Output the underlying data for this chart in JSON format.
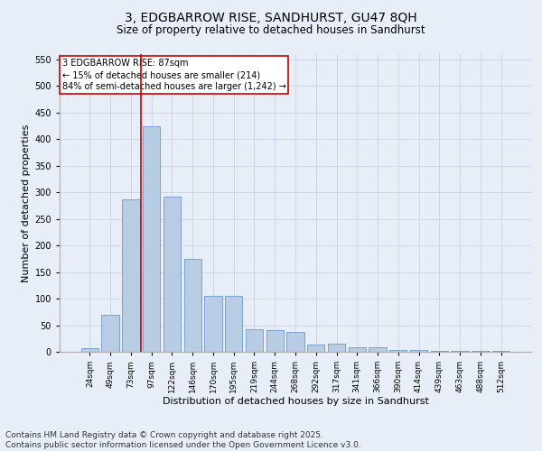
{
  "title_line1": "3, EDGBARROW RISE, SANDHURST, GU47 8QH",
  "title_line2": "Size of property relative to detached houses in Sandhurst",
  "xlabel": "Distribution of detached houses by size in Sandhurst",
  "ylabel": "Number of detached properties",
  "categories": [
    "24sqm",
    "49sqm",
    "73sqm",
    "97sqm",
    "122sqm",
    "146sqm",
    "170sqm",
    "195sqm",
    "219sqm",
    "244sqm",
    "268sqm",
    "292sqm",
    "317sqm",
    "341sqm",
    "366sqm",
    "390sqm",
    "414sqm",
    "439sqm",
    "463sqm",
    "488sqm",
    "512sqm"
  ],
  "values": [
    7,
    70,
    287,
    425,
    292,
    175,
    105,
    105,
    43,
    40,
    38,
    14,
    15,
    8,
    8,
    3,
    3,
    1,
    1,
    2,
    2
  ],
  "bar_color": "#b8cce4",
  "bar_edge_color": "#5b8bc9",
  "red_line_x": 2.5,
  "annotation_text": "3 EDGBARROW RISE: 87sqm\n← 15% of detached houses are smaller (214)\n84% of semi-detached houses are larger (1,242) →",
  "annotation_box_color": "#ffffff",
  "annotation_edge_color": "#cc0000",
  "annotation_text_size": 7,
  "red_line_color": "#cc0000",
  "grid_color": "#d0d8e8",
  "bg_color": "#e8eef8",
  "ylim": [
    0,
    560
  ],
  "yticks": [
    0,
    50,
    100,
    150,
    200,
    250,
    300,
    350,
    400,
    450,
    500,
    550
  ],
  "footer_line1": "Contains HM Land Registry data © Crown copyright and database right 2025.",
  "footer_line2": "Contains public sector information licensed under the Open Government Licence v3.0.",
  "title_fontsize": 10,
  "subtitle_fontsize": 8.5,
  "footer_fontsize": 6.5
}
